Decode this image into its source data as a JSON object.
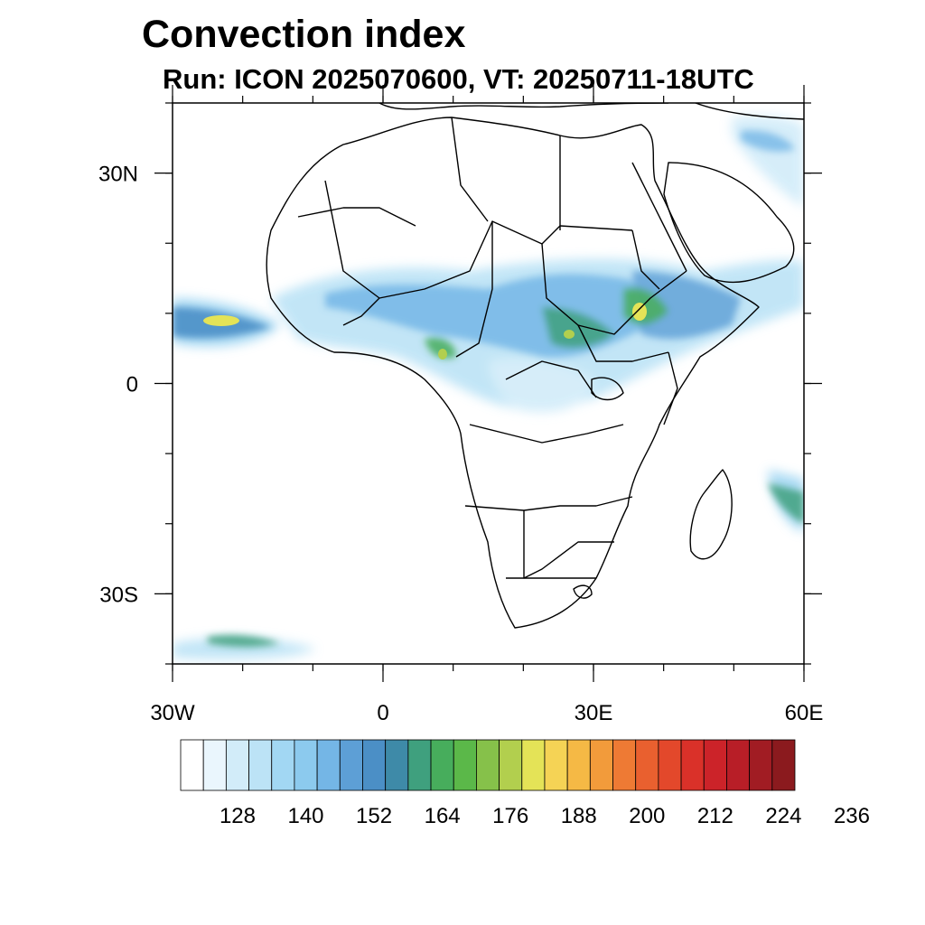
{
  "title": "Convection index",
  "subtitle": "Run: ICON 2025070600,  VT: 20250711-18UTC",
  "map": {
    "lon_range": [
      -30,
      60
    ],
    "lat_range": [
      -40,
      40
    ],
    "x_ticks": [
      {
        "value": -30,
        "label": "30W"
      },
      {
        "value": 0,
        "label": "0"
      },
      {
        "value": 30,
        "label": "30E"
      },
      {
        "value": 60,
        "label": "60E"
      }
    ],
    "y_ticks": [
      {
        "value": 30,
        "label": "30N"
      },
      {
        "value": 0,
        "label": "0"
      },
      {
        "value": -30,
        "label": "30S"
      }
    ],
    "minor_lon_step": 10,
    "minor_lat_step": 10
  },
  "colorbar": {
    "labels": [
      "128",
      "140",
      "152",
      "164",
      "176",
      "188",
      "200",
      "212",
      "224",
      "236"
    ],
    "colors": [
      "#ffffff",
      "#eaf6fd",
      "#d2ecf9",
      "#bce3f6",
      "#a2d7f3",
      "#8ccaee",
      "#74b6e6",
      "#5d9fd6",
      "#4b8fc6",
      "#3e8aa8",
      "#3fa07e",
      "#47ad5c",
      "#5bb849",
      "#86c14a",
      "#b2cf4e",
      "#e4e357",
      "#f5d355",
      "#f5b945",
      "#f29b3b",
      "#ee7a34",
      "#e9602f",
      "#e3482b",
      "#da3129",
      "#cc2329",
      "#b81e27",
      "#a11c23",
      "#8b1a1e"
    ]
  },
  "colors": {
    "land_fill": "#ffffff",
    "coast_line": "#000000"
  }
}
